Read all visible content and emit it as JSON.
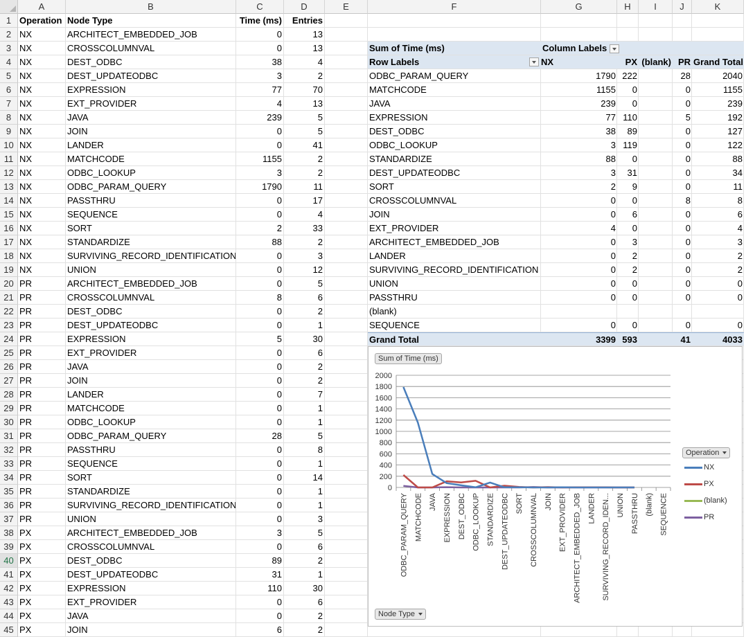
{
  "columns": [
    "A",
    "B",
    "C",
    "D",
    "E",
    "F",
    "G",
    "H",
    "I",
    "J",
    "K"
  ],
  "header_row": {
    "op": "Operation",
    "node": "Node Type",
    "time": "Time (ms)",
    "entries": "Entries"
  },
  "rows": [
    [
      "NX",
      "ARCHITECT_EMBEDDED_JOB",
      "0",
      "13"
    ],
    [
      "NX",
      "CROSSCOLUMNVAL",
      "0",
      "13"
    ],
    [
      "NX",
      "DEST_ODBC",
      "38",
      "4"
    ],
    [
      "NX",
      "DEST_UPDATEODBC",
      "3",
      "2"
    ],
    [
      "NX",
      "EXPRESSION",
      "77",
      "70"
    ],
    [
      "NX",
      "EXT_PROVIDER",
      "4",
      "13"
    ],
    [
      "NX",
      "JAVA",
      "239",
      "5"
    ],
    [
      "NX",
      "JOIN",
      "0",
      "5"
    ],
    [
      "NX",
      "LANDER",
      "0",
      "41"
    ],
    [
      "NX",
      "MATCHCODE",
      "1155",
      "2"
    ],
    [
      "NX",
      "ODBC_LOOKUP",
      "3",
      "2"
    ],
    [
      "NX",
      "ODBC_PARAM_QUERY",
      "1790",
      "11"
    ],
    [
      "NX",
      "PASSTHRU",
      "0",
      "17"
    ],
    [
      "NX",
      "SEQUENCE",
      "0",
      "4"
    ],
    [
      "NX",
      "SORT",
      "2",
      "33"
    ],
    [
      "NX",
      "STANDARDIZE",
      "88",
      "2"
    ],
    [
      "NX",
      "SURVIVING_RECORD_IDENTIFICATION",
      "0",
      "3"
    ],
    [
      "NX",
      "UNION",
      "0",
      "12"
    ],
    [
      "PR",
      "ARCHITECT_EMBEDDED_JOB",
      "0",
      "5"
    ],
    [
      "PR",
      "CROSSCOLUMNVAL",
      "8",
      "6"
    ],
    [
      "PR",
      "DEST_ODBC",
      "0",
      "2"
    ],
    [
      "PR",
      "DEST_UPDATEODBC",
      "0",
      "1"
    ],
    [
      "PR",
      "EXPRESSION",
      "5",
      "30"
    ],
    [
      "PR",
      "EXT_PROVIDER",
      "0",
      "6"
    ],
    [
      "PR",
      "JAVA",
      "0",
      "2"
    ],
    [
      "PR",
      "JOIN",
      "0",
      "2"
    ],
    [
      "PR",
      "LANDER",
      "0",
      "7"
    ],
    [
      "PR",
      "MATCHCODE",
      "0",
      "1"
    ],
    [
      "PR",
      "ODBC_LOOKUP",
      "0",
      "1"
    ],
    [
      "PR",
      "ODBC_PARAM_QUERY",
      "28",
      "5"
    ],
    [
      "PR",
      "PASSTHRU",
      "0",
      "8"
    ],
    [
      "PR",
      "SEQUENCE",
      "0",
      "1"
    ],
    [
      "PR",
      "SORT",
      "0",
      "14"
    ],
    [
      "PR",
      "STANDARDIZE",
      "0",
      "1"
    ],
    [
      "PR",
      "SURVIVING_RECORD_IDENTIFICATION",
      "0",
      "1"
    ],
    [
      "PR",
      "UNION",
      "0",
      "3"
    ],
    [
      "PX",
      "ARCHITECT_EMBEDDED_JOB",
      "3",
      "5"
    ],
    [
      "PX",
      "CROSSCOLUMNVAL",
      "0",
      "6"
    ],
    [
      "PX",
      "DEST_ODBC",
      "89",
      "2"
    ],
    [
      "PX",
      "DEST_UPDATEODBC",
      "31",
      "1"
    ],
    [
      "PX",
      "EXPRESSION",
      "110",
      "30"
    ],
    [
      "PX",
      "EXT_PROVIDER",
      "0",
      "6"
    ],
    [
      "PX",
      "JAVA",
      "0",
      "2"
    ],
    [
      "PX",
      "JOIN",
      "6",
      "2"
    ]
  ],
  "selected_row": "40",
  "pivot": {
    "value_label": "Sum of Time (ms)",
    "column_labels": "Column Labels",
    "row_labels": "Row Labels",
    "col_headers": [
      "NX",
      "PX",
      "(blank)",
      "PR",
      "Grand Total"
    ],
    "rows": [
      [
        "ODBC_PARAM_QUERY",
        "1790",
        "222",
        "",
        "28",
        "2040"
      ],
      [
        "MATCHCODE",
        "1155",
        "0",
        "",
        "0",
        "1155"
      ],
      [
        "JAVA",
        "239",
        "0",
        "",
        "0",
        "239"
      ],
      [
        "EXPRESSION",
        "77",
        "110",
        "",
        "5",
        "192"
      ],
      [
        "DEST_ODBC",
        "38",
        "89",
        "",
        "0",
        "127"
      ],
      [
        "ODBC_LOOKUP",
        "3",
        "119",
        "",
        "0",
        "122"
      ],
      [
        "STANDARDIZE",
        "88",
        "0",
        "",
        "0",
        "88"
      ],
      [
        "DEST_UPDATEODBC",
        "3",
        "31",
        "",
        "0",
        "34"
      ],
      [
        "SORT",
        "2",
        "9",
        "",
        "0",
        "11"
      ],
      [
        "CROSSCOLUMNVAL",
        "0",
        "0",
        "",
        "8",
        "8"
      ],
      [
        "JOIN",
        "0",
        "6",
        "",
        "0",
        "6"
      ],
      [
        "EXT_PROVIDER",
        "4",
        "0",
        "",
        "0",
        "4"
      ],
      [
        "ARCHITECT_EMBEDDED_JOB",
        "0",
        "3",
        "",
        "0",
        "3"
      ],
      [
        "LANDER",
        "0",
        "2",
        "",
        "0",
        "2"
      ],
      [
        "SURVIVING_RECORD_IDENTIFICATION",
        "0",
        "2",
        "",
        "0",
        "2"
      ],
      [
        "UNION",
        "0",
        "0",
        "",
        "0",
        "0"
      ],
      [
        "PASSTHRU",
        "0",
        "0",
        "",
        "0",
        "0"
      ],
      [
        "(blank)",
        "",
        "",
        "",
        "",
        ""
      ],
      [
        "SEQUENCE",
        "0",
        "0",
        "",
        "0",
        "0"
      ]
    ],
    "grand_total": [
      "Grand Total",
      "3399",
      "593",
      "",
      "41",
      "4033"
    ]
  },
  "chart_data": {
    "type": "line",
    "title": "",
    "value_field_button": "Sum of Time (ms)",
    "axis_field_button": "Node Type",
    "legend_field_button": "Operation",
    "legend_position": "right",
    "categories": [
      "ODBC_PARAM_QUERY",
      "MATCHCODE",
      "JAVA",
      "EXPRESSION",
      "DEST_ODBC",
      "ODBC_LOOKUP",
      "STANDARDIZE",
      "DEST_UPDATEODBC",
      "SORT",
      "CROSSCOLUMNVAL",
      "JOIN",
      "EXT_PROVIDER",
      "ARCHITECT_EMBEDDED_JOB",
      "LANDER",
      "SURVIVING_RECORD_IDEN...",
      "UNION",
      "PASSTHRU",
      "(blank)",
      "SEQUENCE"
    ],
    "series": [
      {
        "name": "NX",
        "color": "#4a7ebb",
        "values": [
          1790,
          1155,
          239,
          77,
          38,
          3,
          88,
          3,
          2,
          0,
          0,
          4,
          0,
          0,
          0,
          0,
          0,
          null,
          0
        ]
      },
      {
        "name": "PX",
        "color": "#be4b48",
        "values": [
          222,
          0,
          0,
          110,
          89,
          119,
          0,
          31,
          9,
          0,
          6,
          0,
          3,
          2,
          2,
          0,
          0,
          null,
          0
        ]
      },
      {
        "name": "(blank)",
        "color": "#98b954",
        "values": [
          null,
          null,
          null,
          null,
          null,
          null,
          null,
          null,
          null,
          null,
          null,
          null,
          null,
          null,
          null,
          null,
          null,
          null,
          null
        ]
      },
      {
        "name": "PR",
        "color": "#7d60a0",
        "values": [
          28,
          0,
          0,
          5,
          0,
          0,
          0,
          0,
          0,
          8,
          0,
          0,
          0,
          0,
          0,
          0,
          0,
          null,
          0
        ]
      }
    ],
    "yticks": [
      "0",
      "200",
      "400",
      "600",
      "800",
      "1000",
      "1200",
      "1400",
      "1600",
      "1800",
      "2000"
    ],
    "ylim": [
      0,
      2000
    ],
    "grid": true
  }
}
